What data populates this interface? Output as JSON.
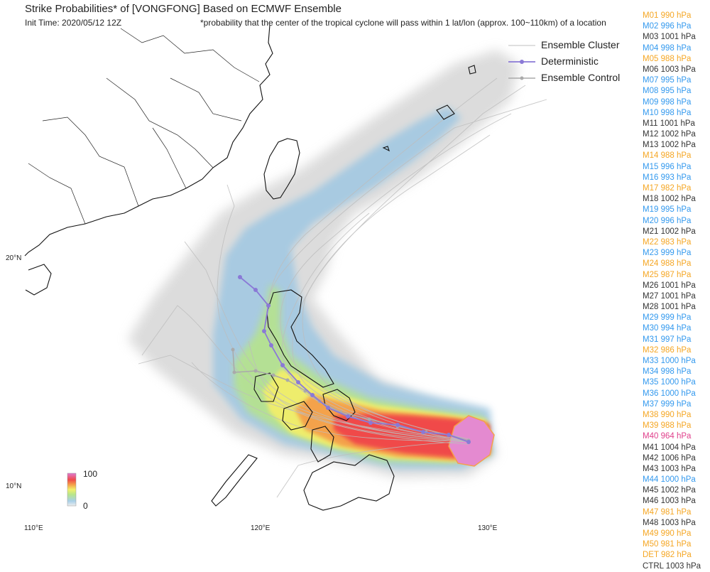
{
  "title": "Strike Probabilities* of [VONGFONG] Based on ECMWF Ensemble",
  "init_time": "Init Time: 2020/05/12 12Z",
  "footnote": "*probability that the center of the tropical cyclone will pass within 1 lat/lon (approx. 100~110km) of a location",
  "legend": {
    "cluster": "Ensemble Cluster",
    "deterministic": "Deterministic",
    "control": "Ensemble Control"
  },
  "colors": {
    "weak": "#f5a623",
    "moderate": "#3399ee",
    "none": "#333333",
    "strong": "#e0418c",
    "deterministic": "#8a79d6",
    "control": "#aaaaaa",
    "coast": "#111111"
  },
  "members": [
    {
      "label": "M01 990 hPa",
      "c": "weak"
    },
    {
      "label": "M02 996 hPa",
      "c": "moderate"
    },
    {
      "label": "M03 1001 hPa",
      "c": "none"
    },
    {
      "label": "M04 998 hPa",
      "c": "moderate"
    },
    {
      "label": "M05 988 hPa",
      "c": "weak"
    },
    {
      "label": "M06 1003 hPa",
      "c": "none"
    },
    {
      "label": "M07 995 hPa",
      "c": "moderate"
    },
    {
      "label": "M08 995 hPa",
      "c": "moderate"
    },
    {
      "label": "M09 998 hPa",
      "c": "moderate"
    },
    {
      "label": "M10 998 hPa",
      "c": "moderate"
    },
    {
      "label": "M11 1001 hPa",
      "c": "none"
    },
    {
      "label": "M12 1002 hPa",
      "c": "none"
    },
    {
      "label": "M13 1002 hPa",
      "c": "none"
    },
    {
      "label": "M14 988 hPa",
      "c": "weak"
    },
    {
      "label": "M15 996 hPa",
      "c": "moderate"
    },
    {
      "label": "M16 993 hPa",
      "c": "moderate"
    },
    {
      "label": "M17 982 hPa",
      "c": "weak"
    },
    {
      "label": "M18 1002 hPa",
      "c": "none"
    },
    {
      "label": "M19 995 hPa",
      "c": "moderate"
    },
    {
      "label": "M20 996 hPa",
      "c": "moderate"
    },
    {
      "label": "M21 1002 hPa",
      "c": "none"
    },
    {
      "label": "M22 983 hPa",
      "c": "weak"
    },
    {
      "label": "M23 999 hPa",
      "c": "moderate"
    },
    {
      "label": "M24 988 hPa",
      "c": "weak"
    },
    {
      "label": "M25 987 hPa",
      "c": "weak"
    },
    {
      "label": "M26 1001 hPa",
      "c": "none"
    },
    {
      "label": "M27 1001 hPa",
      "c": "none"
    },
    {
      "label": "M28 1001 hPa",
      "c": "none"
    },
    {
      "label": "M29 999 hPa",
      "c": "moderate"
    },
    {
      "label": "M30 994 hPa",
      "c": "moderate"
    },
    {
      "label": "M31 997 hPa",
      "c": "moderate"
    },
    {
      "label": "M32 986 hPa",
      "c": "weak"
    },
    {
      "label": "M33 1000 hPa",
      "c": "moderate"
    },
    {
      "label": "M34 998 hPa",
      "c": "moderate"
    },
    {
      "label": "M35 1000 hPa",
      "c": "moderate"
    },
    {
      "label": "M36 1000 hPa",
      "c": "moderate"
    },
    {
      "label": "M37 999 hPa",
      "c": "moderate"
    },
    {
      "label": "M38 990 hPa",
      "c": "weak"
    },
    {
      "label": "M39 988 hPa",
      "c": "weak"
    },
    {
      "label": "M40 964 hPa",
      "c": "strong"
    },
    {
      "label": "M41 1004 hPa",
      "c": "none"
    },
    {
      "label": "M42 1006 hPa",
      "c": "none"
    },
    {
      "label": "M43 1003 hPa",
      "c": "none"
    },
    {
      "label": "M44 1000 hPa",
      "c": "moderate"
    },
    {
      "label": "M45 1002 hPa",
      "c": "none"
    },
    {
      "label": "M46 1003 hPa",
      "c": "none"
    },
    {
      "label": "M47 981 hPa",
      "c": "weak"
    },
    {
      "label": "M48 1003 hPa",
      "c": "none"
    },
    {
      "label": "M49 990 hPa",
      "c": "weak"
    },
    {
      "label": "M50 981 hPa",
      "c": "weak"
    },
    {
      "label": "DET 982 hPa",
      "c": "weak"
    },
    {
      "label": "CTRL 1003 hPa",
      "c": "none"
    }
  ],
  "lat_labels": [
    "20°N",
    "10°N"
  ],
  "lon_labels": [
    "110°E",
    "120°E",
    "130°E"
  ],
  "colorbar": {
    "max": "100",
    "min": "0"
  }
}
